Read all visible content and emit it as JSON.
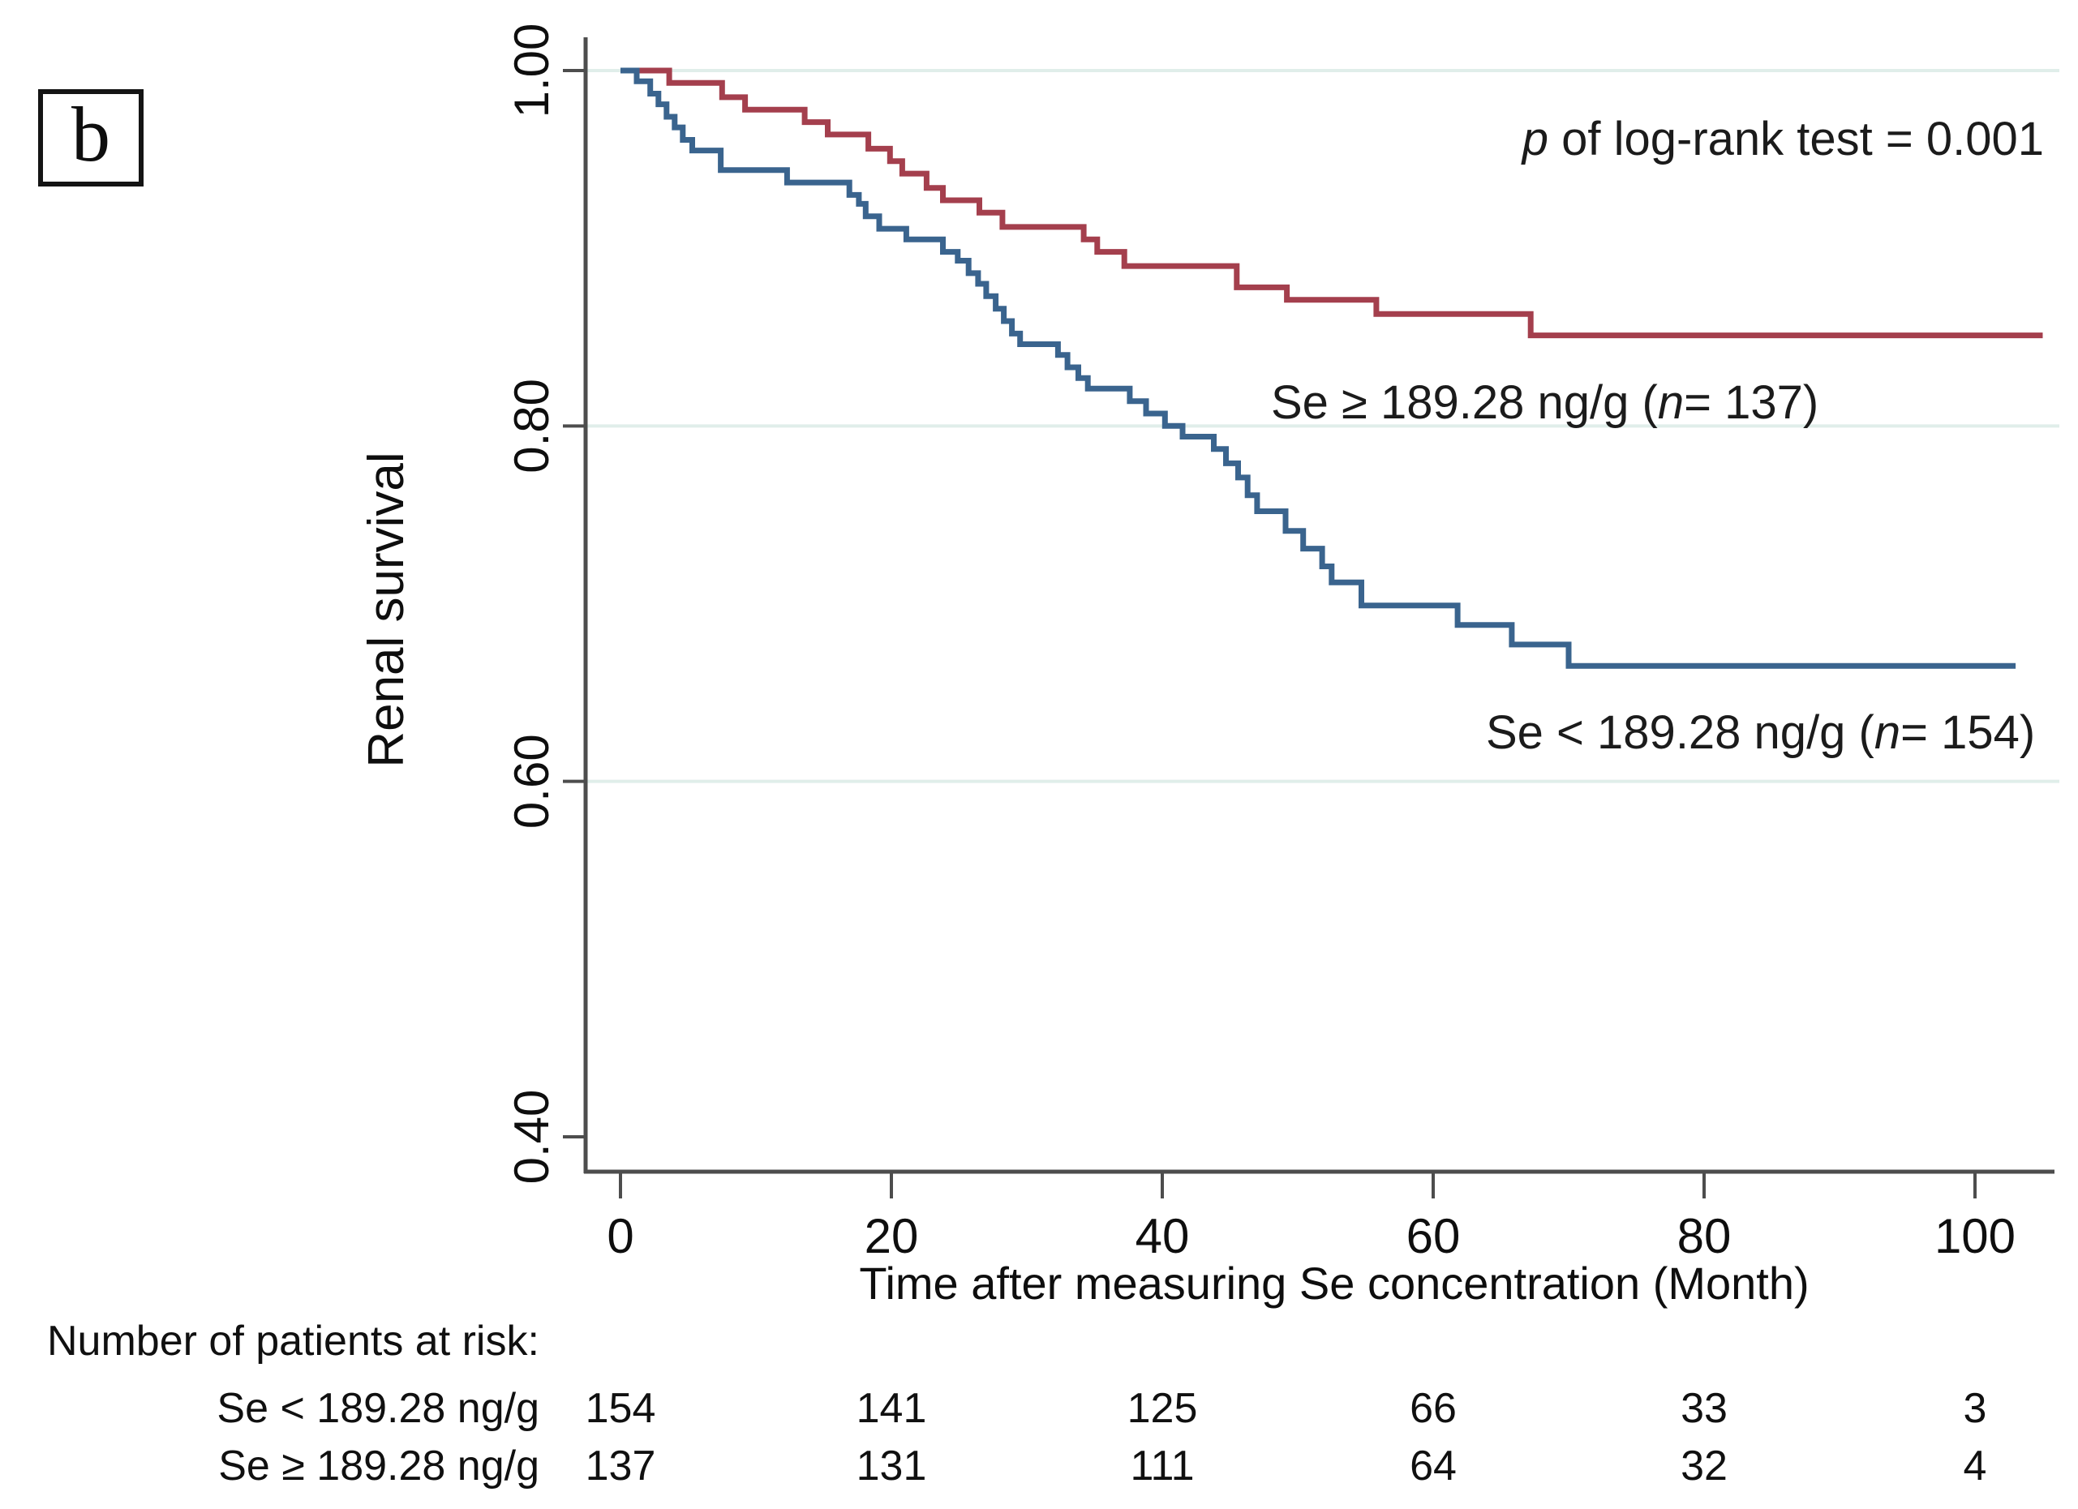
{
  "panel_label": "b",
  "pvalue": {
    "italic_part": "p",
    "text_part": " of log-rank test = 0.001"
  },
  "legend": {
    "red": {
      "prefix": "Se ≥ 189.28 ng/g (",
      "n": "n",
      "suffix": "= 137)"
    },
    "blue": {
      "prefix": "Se < 189.28 ng/g (",
      "n": "n",
      "suffix": "= 154)"
    }
  },
  "risk_table": {
    "header": "Number of patients at risk:",
    "times": [
      0,
      20,
      40,
      60,
      80,
      100
    ],
    "rows": [
      {
        "label": "Se < 189.28 ng/g",
        "values": [
          "154",
          "141",
          "125",
          "66",
          "33",
          "3"
        ]
      },
      {
        "label": "Se ≥ 189.28 ng/g",
        "values": [
          "137",
          "131",
          "111",
          "64",
          "32",
          "4"
        ]
      }
    ]
  },
  "chart_data": {
    "type": "line",
    "subtype": "kaplan-meier-step",
    "title": "",
    "xlabel": "Time after measuring Se concentration (Month)",
    "ylabel": "Renal survival",
    "xlim": [
      0,
      105
    ],
    "ylim": [
      0.37,
      1.01
    ],
    "x_ticks": [
      0,
      20,
      40,
      60,
      80,
      100
    ],
    "y_ticks": [
      {
        "value": 1.0,
        "label": "1.00"
      },
      {
        "value": 0.8,
        "label": "0.80"
      },
      {
        "value": 0.6,
        "label": "0.60"
      },
      {
        "value": 0.4,
        "label": "0.40"
      }
    ],
    "gridlines_at": [
      1.0,
      0.8,
      0.6
    ],
    "grid_on": true,
    "legend_position": "annotations-inside-plot",
    "colors": {
      "grid": "#e0eeea",
      "axis": "#4d4d4d",
      "text": "#0e0e0e"
    },
    "annotation": "p of log-rank test = 0.001",
    "series": [
      {
        "name": "Se ≥ 189.28 ng/g",
        "n": 137,
        "color": "#a43f4d",
        "start_survival": 1.0,
        "end_time": 105,
        "steps": [
          [
            3.6,
            0.993
          ],
          [
            7.5,
            0.985
          ],
          [
            9.2,
            0.978
          ],
          [
            13.6,
            0.971
          ],
          [
            15.3,
            0.964
          ],
          [
            18.3,
            0.956
          ],
          [
            19.9,
            0.949
          ],
          [
            20.8,
            0.942
          ],
          [
            22.6,
            0.934
          ],
          [
            23.8,
            0.927
          ],
          [
            26.5,
            0.92
          ],
          [
            28.2,
            0.912
          ],
          [
            34.2,
            0.905
          ],
          [
            35.2,
            0.898
          ],
          [
            37.2,
            0.89
          ],
          [
            45.5,
            0.878
          ],
          [
            49.2,
            0.871
          ],
          [
            55.8,
            0.863
          ],
          [
            67.2,
            0.851
          ]
        ]
      },
      {
        "name": "Se < 189.28 ng/g",
        "n": 154,
        "color": "#3a648e",
        "start_survival": 1.0,
        "end_time": 103,
        "steps": [
          [
            1.2,
            0.994
          ],
          [
            2.2,
            0.987
          ],
          [
            2.8,
            0.981
          ],
          [
            3.4,
            0.974
          ],
          [
            4.0,
            0.968
          ],
          [
            4.6,
            0.961
          ],
          [
            5.3,
            0.955
          ],
          [
            7.4,
            0.944
          ],
          [
            12.3,
            0.937
          ],
          [
            16.9,
            0.93
          ],
          [
            17.6,
            0.925
          ],
          [
            18.1,
            0.918
          ],
          [
            19.1,
            0.911
          ],
          [
            21.1,
            0.905
          ],
          [
            23.8,
            0.898
          ],
          [
            24.9,
            0.893
          ],
          [
            25.7,
            0.886
          ],
          [
            26.4,
            0.88
          ],
          [
            27.0,
            0.873
          ],
          [
            27.7,
            0.866
          ],
          [
            28.3,
            0.859
          ],
          [
            28.9,
            0.852
          ],
          [
            29.5,
            0.846
          ],
          [
            32.3,
            0.84
          ],
          [
            33.0,
            0.833
          ],
          [
            33.8,
            0.827
          ],
          [
            34.5,
            0.821
          ],
          [
            37.6,
            0.814
          ],
          [
            38.8,
            0.807
          ],
          [
            40.2,
            0.8
          ],
          [
            41.5,
            0.794
          ],
          [
            43.8,
            0.787
          ],
          [
            44.7,
            0.779
          ],
          [
            45.6,
            0.771
          ],
          [
            46.3,
            0.761
          ],
          [
            47.0,
            0.752
          ],
          [
            49.1,
            0.741
          ],
          [
            50.4,
            0.731
          ],
          [
            51.8,
            0.721
          ],
          [
            52.5,
            0.712
          ],
          [
            54.7,
            0.699
          ],
          [
            61.8,
            0.688
          ],
          [
            65.8,
            0.677
          ],
          [
            70.0,
            0.665
          ]
        ]
      }
    ]
  }
}
